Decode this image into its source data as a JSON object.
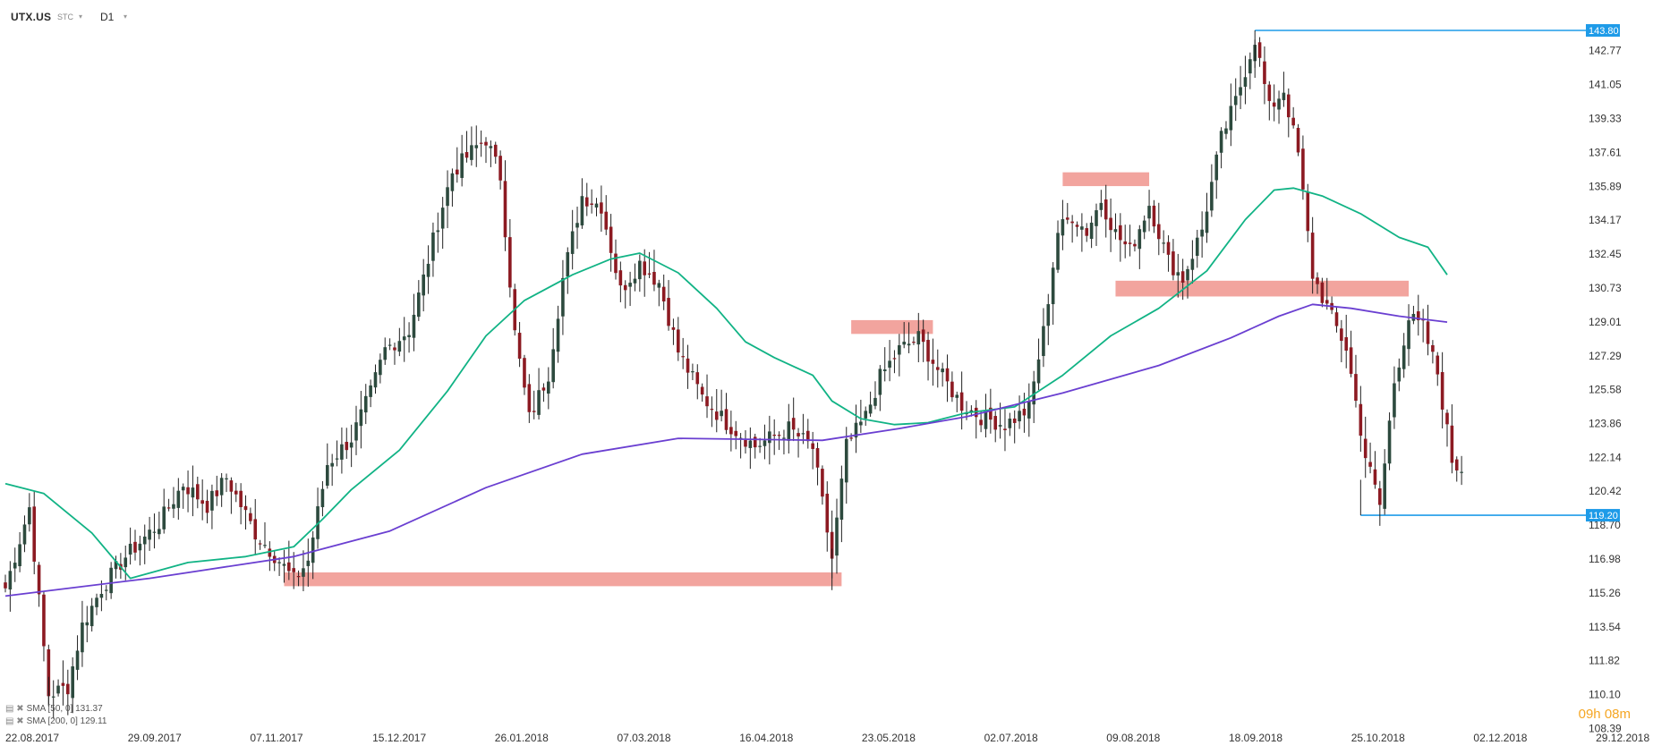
{
  "header": {
    "symbol": "UTX.US",
    "source": "STC",
    "timeframe": "D1",
    "caret": "▾"
  },
  "legend": [
    {
      "text": "SMA [50, 0] 131.37",
      "color": "#11b385"
    },
    {
      "text": "SMA [200, 0] 129.11",
      "color": "#6a3fd1"
    }
  ],
  "timer": "09h 08m",
  "chart_data": {
    "type": "candlestick",
    "y_ticks": [
      "142.77",
      "141.05",
      "139.33",
      "137.61",
      "135.89",
      "134.17",
      "132.45",
      "130.73",
      "129.01",
      "127.29",
      "125.58",
      "123.86",
      "122.14",
      "120.42",
      "118.70",
      "116.98",
      "115.26",
      "113.54",
      "111.82",
      "110.10",
      "108.39"
    ],
    "x_ticks": [
      "22.08.2017",
      "29.09.2017",
      "07.11.2017",
      "15.12.2017",
      "26.01.2018",
      "07.03.2018",
      "16.04.2018",
      "23.05.2018",
      "02.07.2018",
      "09.08.2018",
      "18.09.2018",
      "25.10.2018",
      "02.12.2018",
      "29.12.2018"
    ],
    "ylim": [
      108.39,
      144.5
    ],
    "price_labels": [
      {
        "text": "143.80",
        "value": 143.8,
        "color": "#1e9be8"
      },
      {
        "text": "119.20",
        "value": 119.2,
        "color": "#1e9be8"
      }
    ],
    "horizontal_lines": [
      {
        "value": 143.8,
        "from_index": 260,
        "color": "#1e9be8"
      },
      {
        "value": 119.2,
        "from_index": 282,
        "color": "#1e9be8"
      }
    ],
    "zones": [
      {
        "from_index": 58,
        "to_index": 174,
        "low": 115.6,
        "high": 116.3,
        "color": "#f19a94"
      },
      {
        "from_index": 176,
        "to_index": 193,
        "low": 128.4,
        "high": 129.1,
        "color": "#f19a94"
      },
      {
        "from_index": 220,
        "to_index": 238,
        "low": 135.9,
        "high": 136.6,
        "color": "#f19a94"
      },
      {
        "from_index": 231,
        "to_index": 292,
        "low": 130.3,
        "high": 131.1,
        "color": "#f19a94"
      }
    ],
    "series": [
      {
        "name": "SMA [50, 0]",
        "color": "#11b385",
        "points": [
          [
            0,
            120.8
          ],
          [
            8,
            120.3
          ],
          [
            18,
            118.3
          ],
          [
            26,
            116.0
          ],
          [
            38,
            116.8
          ],
          [
            50,
            117.1
          ],
          [
            60,
            117.6
          ],
          [
            66,
            119.0
          ],
          [
            72,
            120.5
          ],
          [
            82,
            122.5
          ],
          [
            92,
            125.5
          ],
          [
            100,
            128.3
          ],
          [
            108,
            130.1
          ],
          [
            118,
            131.4
          ],
          [
            126,
            132.2
          ],
          [
            132,
            132.5
          ],
          [
            140,
            131.5
          ],
          [
            148,
            129.7
          ],
          [
            154,
            128.0
          ],
          [
            160,
            127.2
          ],
          [
            168,
            126.3
          ],
          [
            172,
            125.0
          ],
          [
            178,
            124.1
          ],
          [
            185,
            123.8
          ],
          [
            192,
            123.9
          ],
          [
            200,
            124.4
          ],
          [
            210,
            124.7
          ],
          [
            220,
            126.3
          ],
          [
            230,
            128.3
          ],
          [
            240,
            129.7
          ],
          [
            250,
            131.6
          ],
          [
            258,
            134.2
          ],
          [
            264,
            135.7
          ],
          [
            268,
            135.8
          ],
          [
            274,
            135.4
          ],
          [
            282,
            134.5
          ],
          [
            290,
            133.3
          ],
          [
            296,
            132.8
          ],
          [
            300,
            131.4
          ]
        ]
      },
      {
        "name": "SMA [200, 0]",
        "color": "#6a3fd1",
        "points": [
          [
            0,
            115.1
          ],
          [
            30,
            116.0
          ],
          [
            60,
            117.1
          ],
          [
            80,
            118.4
          ],
          [
            100,
            120.6
          ],
          [
            120,
            122.3
          ],
          [
            140,
            123.1
          ],
          [
            170,
            123.0
          ],
          [
            186,
            123.6
          ],
          [
            200,
            124.2
          ],
          [
            220,
            125.4
          ],
          [
            240,
            126.8
          ],
          [
            255,
            128.2
          ],
          [
            265,
            129.3
          ],
          [
            272,
            129.9
          ],
          [
            280,
            129.7
          ],
          [
            290,
            129.3
          ],
          [
            300,
            129.0
          ]
        ]
      }
    ],
    "anchors": [
      [
        0,
        115.5
      ],
      [
        5,
        119.6
      ],
      [
        9,
        110.1
      ],
      [
        13,
        110.5
      ],
      [
        16,
        113.6
      ],
      [
        20,
        115.5
      ],
      [
        25,
        117.1
      ],
      [
        32,
        118.8
      ],
      [
        37,
        120.8
      ],
      [
        42,
        119.7
      ],
      [
        46,
        121.1
      ],
      [
        52,
        118.3
      ],
      [
        57,
        116.9
      ],
      [
        60,
        115.9
      ],
      [
        63,
        116.9
      ],
      [
        67,
        121.8
      ],
      [
        72,
        123.1
      ],
      [
        76,
        125.4
      ],
      [
        79,
        127.6
      ],
      [
        84,
        128.6
      ],
      [
        87,
        131.2
      ],
      [
        90,
        134.1
      ],
      [
        93,
        136.6
      ],
      [
        98,
        137.9
      ],
      [
        100,
        138.3
      ],
      [
        103,
        136.4
      ],
      [
        106,
        128.4
      ],
      [
        109,
        124.1
      ],
      [
        113,
        126.4
      ],
      [
        116,
        131.2
      ],
      [
        120,
        135.4
      ],
      [
        124,
        134.9
      ],
      [
        128,
        130.6
      ],
      [
        132,
        132.0
      ],
      [
        136,
        131.0
      ],
      [
        140,
        127.5
      ],
      [
        145,
        125.2
      ],
      [
        150,
        123.9
      ],
      [
        156,
        122.7
      ],
      [
        163,
        123.6
      ],
      [
        168,
        122.6
      ],
      [
        172,
        117.0
      ],
      [
        175,
        122.7
      ],
      [
        179,
        124.2
      ],
      [
        182,
        126.2
      ],
      [
        186,
        127.6
      ],
      [
        190,
        128.2
      ],
      [
        195,
        126.2
      ],
      [
        199,
        124.8
      ],
      [
        203,
        124.2
      ],
      [
        208,
        123.8
      ],
      [
        213,
        124.6
      ],
      [
        216,
        128.5
      ],
      [
        219,
        133.6
      ],
      [
        222,
        134.4
      ],
      [
        225,
        133.6
      ],
      [
        228,
        135.2
      ],
      [
        231,
        133.5
      ],
      [
        234,
        132.6
      ],
      [
        238,
        135.0
      ],
      [
        242,
        132.1
      ],
      [
        245,
        131.2
      ],
      [
        249,
        133.7
      ],
      [
        253,
        138.3
      ],
      [
        256,
        140.2
      ],
      [
        260,
        143.4
      ],
      [
        263,
        139.8
      ],
      [
        266,
        140.8
      ],
      [
        269,
        137.5
      ],
      [
        272,
        131.4
      ],
      [
        276,
        129.2
      ],
      [
        279,
        127.7
      ],
      [
        283,
        122.2
      ],
      [
        286,
        119.7
      ],
      [
        289,
        126.0
      ],
      [
        292,
        129.2
      ],
      [
        295,
        128.7
      ],
      [
        298,
        126.4
      ],
      [
        301,
        122.0
      ],
      [
        303,
        121.4
      ]
    ]
  }
}
